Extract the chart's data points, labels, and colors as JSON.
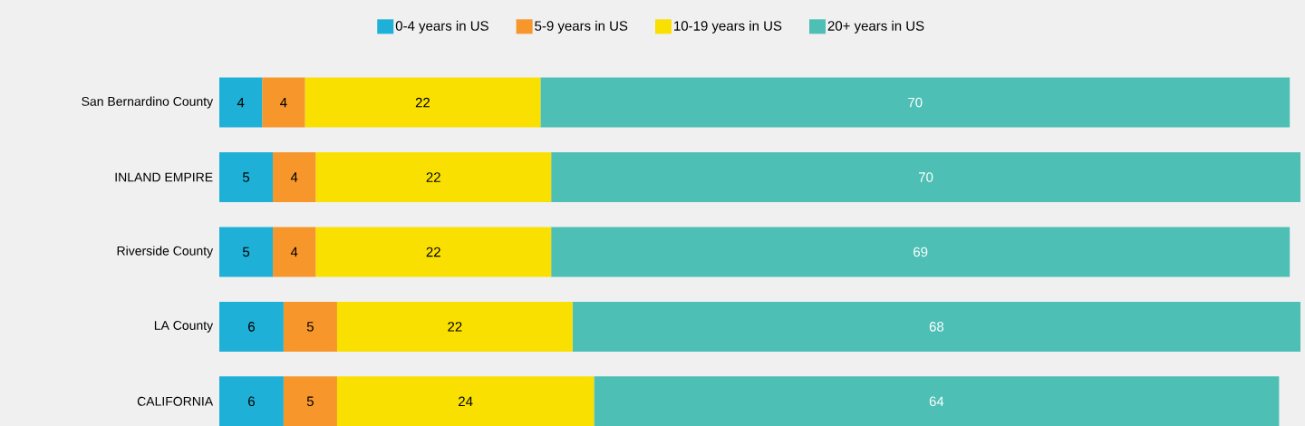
{
  "chart_data": {
    "type": "bar",
    "orientation": "horizontal",
    "stacked": true,
    "data_labels": true,
    "legend": "top",
    "categories": [
      "San Bernardino County",
      "INLAND EMPIRE",
      "Riverside County",
      "LA County",
      "CALIFORNIA"
    ],
    "series": [
      {
        "name": "0-4 years in US",
        "color": "#1eb0d6",
        "values": [
          4,
          5,
          5,
          6,
          6
        ]
      },
      {
        "name": "5-9 years in US",
        "color": "#f7962a",
        "values": [
          4,
          4,
          4,
          5,
          5
        ]
      },
      {
        "name": "10-19 years in US",
        "color": "#fae000",
        "values": [
          22,
          22,
          22,
          22,
          24
        ]
      },
      {
        "name": "20+ years in US",
        "color": "#4dbfb4",
        "values": [
          70,
          70,
          69,
          68,
          64
        ]
      }
    ]
  }
}
